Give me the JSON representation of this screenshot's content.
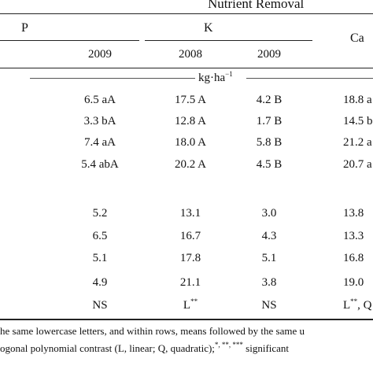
{
  "header": {
    "nutrient_removal": "Nutrient Removal",
    "p": "P",
    "k": "K",
    "ca": "Ca",
    "year_p": "2009",
    "year_k1": "2008",
    "year_k2": "2009",
    "units": "kg·ha",
    "units_exp": "−1"
  },
  "rows": [
    {
      "p": "6.5 aA",
      "k2008": "17.5 A",
      "k2009": "4.2 B",
      "ca": "18.8 a"
    },
    {
      "p": "3.3 bA",
      "k2008": "12.8 A",
      "k2009": "1.7 B",
      "ca": "14.5 b"
    },
    {
      "p": "7.4 aA",
      "k2008": "18.0 A",
      "k2009": "5.8 B",
      "ca": "21.2 a"
    },
    {
      "p": "5.4 abA",
      "k2008": "20.2 A",
      "k2009": "4.5 B",
      "ca": "20.7 a"
    },
    {
      "p": "5.2",
      "k2008": "13.1",
      "k2009": "3.0",
      "ca": "13.8"
    },
    {
      "p": "6.5",
      "k2008": "16.7",
      "k2009": "4.3",
      "ca": "13.3"
    },
    {
      "p": "5.1",
      "k2008": "17.8",
      "k2009": "5.1",
      "ca": "16.8"
    },
    {
      "p": "4.9",
      "k2008": "21.1",
      "k2009": "3.8",
      "ca": "19.0"
    }
  ],
  "contrast": {
    "p": "NS",
    "k2008": "L",
    "k2008_sup": "**",
    "k2009": "NS",
    "ca": "L",
    "ca_sup": "**",
    "ca_tail": ", Q"
  },
  "footnotes": {
    "line1": "he same lowercase letters, and within rows, means followed by the same u",
    "line2_a": "ogonal polynomial contrast (L, linear; Q, quadratic);",
    "line2_sup": "*, **, ***",
    "line2_b": " significant"
  }
}
